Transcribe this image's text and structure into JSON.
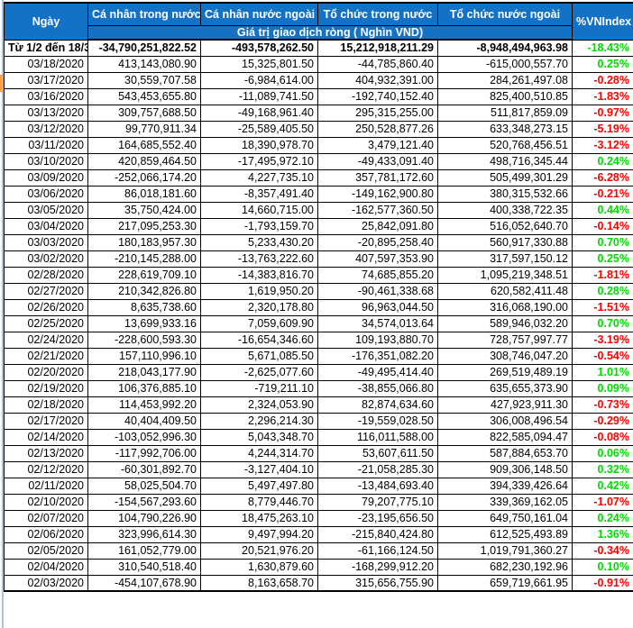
{
  "header": {
    "col_date": "Ngày",
    "col_v1": "Cá nhân trong nước",
    "col_v2": "Cá nhân nước ngoài",
    "col_v3": "Tổ chức trong nước",
    "col_v4": "Tổ chức nước ngoài",
    "col_pct": "%VNIndex",
    "subheader": "Giá trị giao dịch ròng ( Nghìn VND)"
  },
  "colors": {
    "header_bg": "#1371C6",
    "green": "#00DB00",
    "red": "#FF0000",
    "gutter_line": "#A9C3DF",
    "selection_marker": "#FAA14E"
  },
  "rows": [
    {
      "date": "Từ 1/2 đến 18/3",
      "v1": "-34,790,251,822.52",
      "v2": "-493,578,262.50",
      "v3": "15,212,918,211.29",
      "v4": "-8,948,494,963.98",
      "pct": "-18.43%",
      "pct_color": "green",
      "bold": true
    },
    {
      "date": "03/18/2020",
      "v1": "413,143,080.90",
      "v2": "15,325,801.50",
      "v3": "-44,785,860.40",
      "v4": "-615,000,557.70",
      "pct": "0.25%",
      "pct_color": "green",
      "bold": false
    },
    {
      "date": "03/17/2020",
      "v1": "30,559,707.58",
      "v2": "-6,984,614.00",
      "v3": "404,932,391.00",
      "v4": "284,261,497.08",
      "pct": "-0.28%",
      "pct_color": "red",
      "bold": false
    },
    {
      "date": "03/16/2020",
      "v1": "543,453,655.80",
      "v2": "-11,089,741.50",
      "v3": "-192,740,152.40",
      "v4": "825,400,510.85",
      "pct": "-1.83%",
      "pct_color": "red",
      "bold": false
    },
    {
      "date": "03/13/2020",
      "v1": "309,757,688.50",
      "v2": "-49,168,961.40",
      "v3": "295,315,255.00",
      "v4": "511,817,859.09",
      "pct": "-0.97%",
      "pct_color": "red",
      "bold": false
    },
    {
      "date": "03/12/2020",
      "v1": "99,770,911.34",
      "v2": "-25,589,405.50",
      "v3": "250,528,877.26",
      "v4": "633,348,273.15",
      "pct": "-5.19%",
      "pct_color": "red",
      "bold": false
    },
    {
      "date": "03/11/2020",
      "v1": "164,685,552.40",
      "v2": "18,390,978.70",
      "v3": "3,479,121.40",
      "v4": "520,768,456.51",
      "pct": "-3.12%",
      "pct_color": "red",
      "bold": false
    },
    {
      "date": "03/10/2020",
      "v1": "420,859,464.50",
      "v2": "-17,495,972.10",
      "v3": "-49,433,091.40",
      "v4": "498,716,345.44",
      "pct": "0.24%",
      "pct_color": "green",
      "bold": false
    },
    {
      "date": "03/09/2020",
      "v1": "-252,066,174.20",
      "v2": "4,227,735.10",
      "v3": "357,781,172.60",
      "v4": "505,499,301.29",
      "pct": "-6.28%",
      "pct_color": "red",
      "bold": false
    },
    {
      "date": "03/06/2020",
      "v1": "86,018,181.60",
      "v2": "-8,357,491.40",
      "v3": "-149,162,900.80",
      "v4": "380,315,532.66",
      "pct": "-0.21%",
      "pct_color": "red",
      "bold": false
    },
    {
      "date": "03/05/2020",
      "v1": "35,750,424.00",
      "v2": "14,660,715.00",
      "v3": "-162,577,360.50",
      "v4": "400,338,722.35",
      "pct": "0.44%",
      "pct_color": "green",
      "bold": false
    },
    {
      "date": "03/04/2020",
      "v1": "217,095,253.30",
      "v2": "-1,793,159.70",
      "v3": "25,842,091.80",
      "v4": "516,052,640.70",
      "pct": "-0.14%",
      "pct_color": "red",
      "bold": false
    },
    {
      "date": "03/03/2020",
      "v1": "180,183,957.30",
      "v2": "5,233,430.20",
      "v3": "-20,895,258.40",
      "v4": "560,917,330.88",
      "pct": "0.70%",
      "pct_color": "green",
      "bold": false
    },
    {
      "date": "03/02/2020",
      "v1": "-210,145,288.00",
      "v2": "-13,763,222.60",
      "v3": "407,597,353.90",
      "v4": "317,597,150.12",
      "pct": "0.25%",
      "pct_color": "green",
      "bold": false
    },
    {
      "date": "02/28/2020",
      "v1": "228,619,709.10",
      "v2": "-14,383,816.70",
      "v3": "74,685,855.20",
      "v4": "1,095,219,348.51",
      "pct": "-1.81%",
      "pct_color": "red",
      "bold": false
    },
    {
      "date": "02/27/2020",
      "v1": "210,342,826.80",
      "v2": "1,619,950.20",
      "v3": "-90,461,338.68",
      "v4": "620,582,411.48",
      "pct": "0.28%",
      "pct_color": "green",
      "bold": false
    },
    {
      "date": "02/26/2020",
      "v1": "8,635,738.60",
      "v2": "2,320,178.80",
      "v3": "96,963,044.50",
      "v4": "316,068,190.00",
      "pct": "-1.51%",
      "pct_color": "red",
      "bold": false
    },
    {
      "date": "02/25/2020",
      "v1": "13,699,933.16",
      "v2": "7,059,609.90",
      "v3": "34,574,013.64",
      "v4": "589,946,032.20",
      "pct": "0.70%",
      "pct_color": "green",
      "bold": false
    },
    {
      "date": "02/24/2020",
      "v1": "-228,600,593.30",
      "v2": "-16,654,346.60",
      "v3": "109,193,880.70",
      "v4": "728,757,997.77",
      "pct": "-3.19%",
      "pct_color": "red",
      "bold": false
    },
    {
      "date": "02/21/2020",
      "v1": "157,110,996.10",
      "v2": "5,671,085.50",
      "v3": "-176,351,082.20",
      "v4": "308,746,047.20",
      "pct": "-0.54%",
      "pct_color": "red",
      "bold": false
    },
    {
      "date": "02/20/2020",
      "v1": "218,043,177.90",
      "v2": "-2,625,077.60",
      "v3": "-49,495,414.40",
      "v4": "269,519,489.19",
      "pct": "1.01%",
      "pct_color": "green",
      "bold": false
    },
    {
      "date": "02/19/2020",
      "v1": "106,376,885.10",
      "v2": "-719,211.10",
      "v3": "-38,855,066.80",
      "v4": "635,655,373.90",
      "pct": "0.09%",
      "pct_color": "green",
      "bold": false
    },
    {
      "date": "02/18/2020",
      "v1": "114,453,992.20",
      "v2": "2,324,053.90",
      "v3": "82,874,634.60",
      "v4": "427,923,911.30",
      "pct": "-0.73%",
      "pct_color": "red",
      "bold": false
    },
    {
      "date": "02/17/2020",
      "v1": "40,404,409.50",
      "v2": "2,296,214.30",
      "v3": "-19,559,028.50",
      "v4": "306,008,496.54",
      "pct": "-0.29%",
      "pct_color": "red",
      "bold": false
    },
    {
      "date": "02/14/2020",
      "v1": "-103,052,996.30",
      "v2": "5,043,348.70",
      "v3": "116,011,588.00",
      "v4": "822,585,094.47",
      "pct": "-0.08%",
      "pct_color": "red",
      "bold": false
    },
    {
      "date": "02/13/2020",
      "v1": "-117,992,706.00",
      "v2": "4,244,314.70",
      "v3": "53,607,611.50",
      "v4": "587,884,653.70",
      "pct": "0.06%",
      "pct_color": "green",
      "bold": false
    },
    {
      "date": "02/12/2020",
      "v1": "-60,301,892.70",
      "v2": "-3,127,404.10",
      "v3": "-21,058,285.30",
      "v4": "909,306,148.50",
      "pct": "0.32%",
      "pct_color": "green",
      "bold": false
    },
    {
      "date": "02/11/2020",
      "v1": "58,025,504.70",
      "v2": "5,497,497.80",
      "v3": "-13,484,693.40",
      "v4": "394,339,426.64",
      "pct": "0.42%",
      "pct_color": "green",
      "bold": false
    },
    {
      "date": "02/10/2020",
      "v1": "-154,567,293.60",
      "v2": "8,779,446.70",
      "v3": "79,207,775.10",
      "v4": "339,369,162.05",
      "pct": "-1.07%",
      "pct_color": "red",
      "bold": false
    },
    {
      "date": "02/07/2020",
      "v1": "104,790,226.90",
      "v2": "18,475,263.10",
      "v3": "-23,195,656.50",
      "v4": "649,750,161.04",
      "pct": "0.24%",
      "pct_color": "green",
      "bold": false
    },
    {
      "date": "02/06/2020",
      "v1": "323,996,614.30",
      "v2": "9,497,994.20",
      "v3": "-215,840,424.80",
      "v4": "612,525,493.89",
      "pct": "1.36%",
      "pct_color": "green",
      "bold": false
    },
    {
      "date": "02/05/2020",
      "v1": "161,052,779.00",
      "v2": "20,521,976.20",
      "v3": "-61,166,124.50",
      "v4": "1,019,791,360.27",
      "pct": "-0.34%",
      "pct_color": "red",
      "bold": false
    },
    {
      "date": "02/04/2020",
      "v1": "310,540,518.40",
      "v2": "1,630,879.60",
      "v3": "-168,299,912.20",
      "v4": "682,230,192.96",
      "pct": "0.10%",
      "pct_color": "green",
      "bold": false
    },
    {
      "date": "02/03/2020",
      "v1": "-454,107,678.90",
      "v2": "8,163,658.70",
      "v3": "315,656,755.90",
      "v4": "659,719,661.95",
      "pct": "-0.91%",
      "pct_color": "red",
      "bold": false
    }
  ]
}
